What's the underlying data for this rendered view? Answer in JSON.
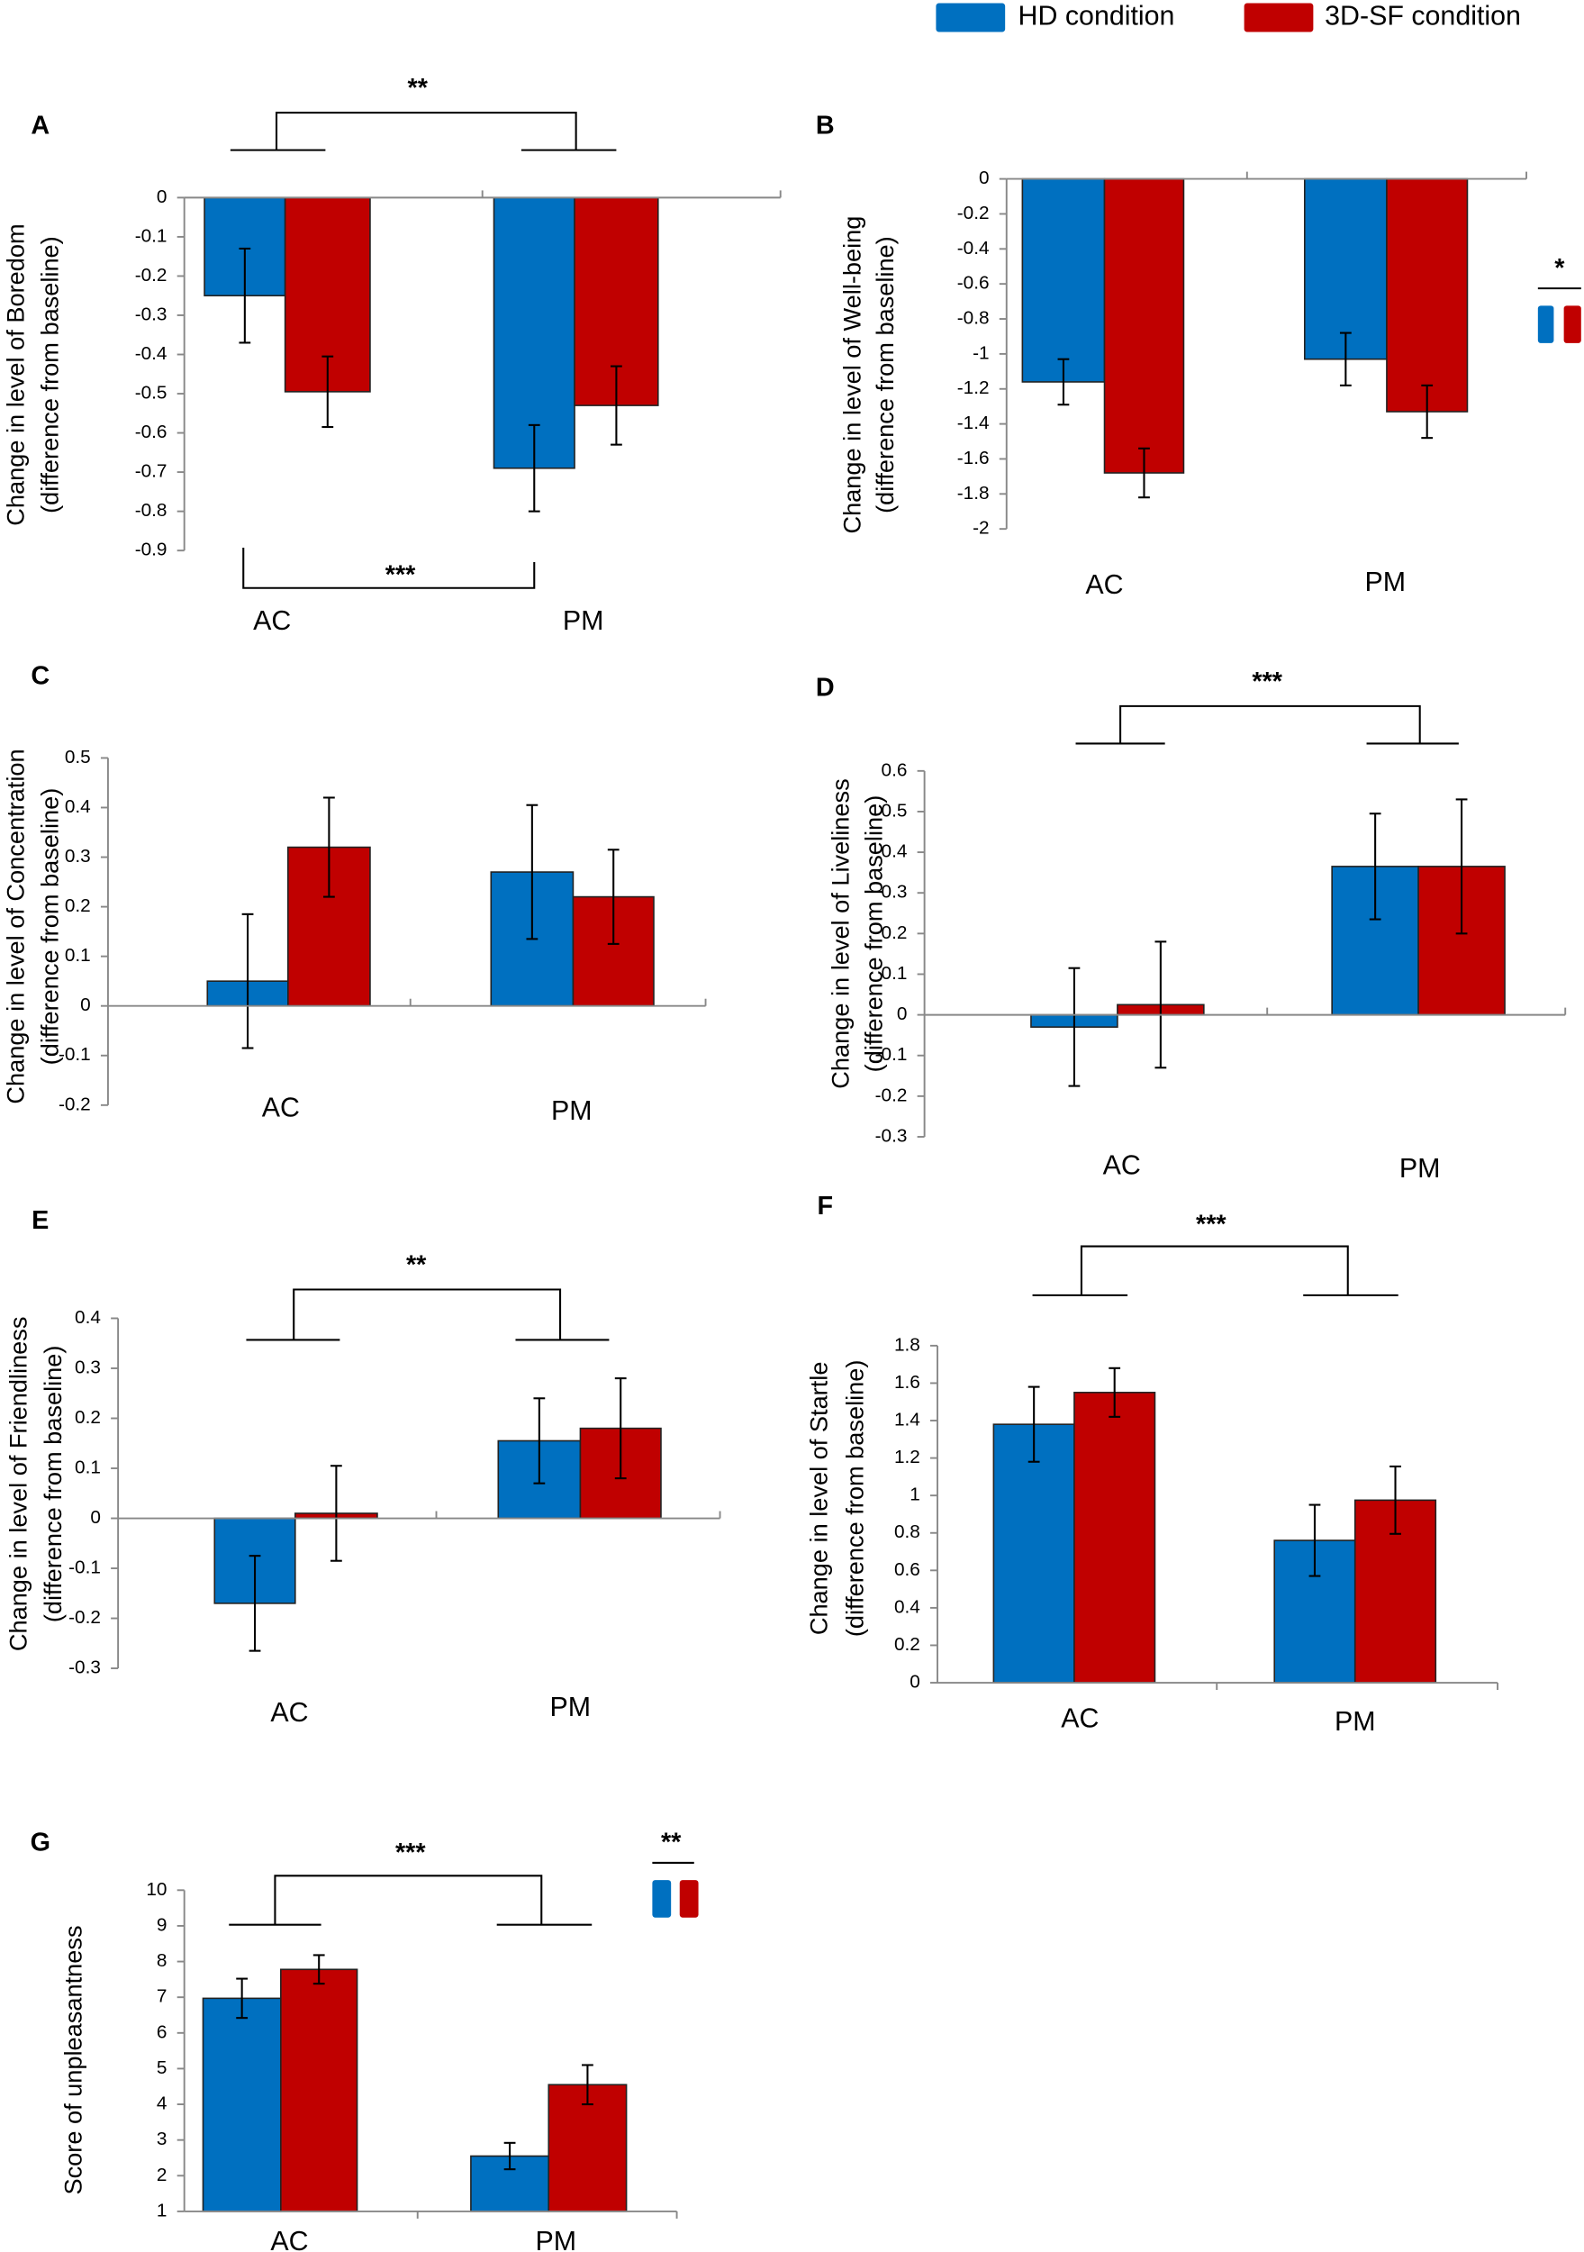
{
  "chart_data": [
    {
      "panel": "A",
      "type": "bar",
      "ylabel": [
        "Change in level of  Boredom",
        "(difference from baseline)"
      ],
      "ylim": [
        0,
        -0.9
      ],
      "ticks": [
        0,
        -0.1,
        -0.2,
        -0.3,
        -0.4,
        -0.5,
        -0.6,
        -0.7,
        -0.8,
        -0.9
      ],
      "categories": [
        "AC",
        "PM"
      ],
      "series": [
        {
          "name": "HD condition",
          "values": [
            -0.25,
            -0.69
          ],
          "errors": [
            0.12,
            0.11
          ]
        },
        {
          "name": "3D-SF condition",
          "values": [
            -0.495,
            -0.53
          ],
          "errors": [
            0.09,
            0.1
          ]
        }
      ],
      "annotations": [
        "**",
        "***"
      ]
    },
    {
      "panel": "B",
      "type": "bar",
      "ylabel": [
        "Change in level of Well-being",
        "(difference from baseline)"
      ],
      "ylim": [
        0,
        -2
      ],
      "ticks": [
        0,
        -0.2,
        -0.4,
        -0.6,
        -0.8,
        -1,
        -1.2,
        -1.4,
        -1.6,
        -1.8,
        -2
      ],
      "categories": [
        "AC",
        "PM"
      ],
      "series": [
        {
          "name": "HD condition",
          "values": [
            -1.16,
            -1.03
          ],
          "errors": [
            0.13,
            0.15
          ]
        },
        {
          "name": "3D-SF condition",
          "values": [
            -1.68,
            -1.33
          ],
          "errors": [
            0.14,
            0.15
          ]
        }
      ],
      "annotations": [
        "*"
      ]
    },
    {
      "panel": "C",
      "type": "bar",
      "ylabel": [
        "Change in level of Concentration",
        "(difference from baseline)"
      ],
      "ylim": [
        0.5,
        -0.2
      ],
      "ticks": [
        0.5,
        0.4,
        0.3,
        0.2,
        0.1,
        0,
        -0.1,
        -0.2
      ],
      "categories": [
        "AC",
        "PM"
      ],
      "series": [
        {
          "name": "HD condition",
          "values": [
            0.05,
            0.27
          ],
          "errors": [
            0.135,
            0.135
          ]
        },
        {
          "name": "3D-SF condition",
          "values": [
            0.32,
            0.22
          ],
          "errors": [
            0.1,
            0.095
          ]
        }
      ],
      "annotations": []
    },
    {
      "panel": "D",
      "type": "bar",
      "ylabel": [
        "Change in level of Liveliness",
        "(difference from baseline)"
      ],
      "ylim": [
        0.6,
        -0.3
      ],
      "ticks": [
        0.6,
        0.5,
        0.4,
        0.3,
        0.2,
        0.1,
        0,
        -0.1,
        -0.2,
        -0.3
      ],
      "categories": [
        "AC",
        "PM"
      ],
      "series": [
        {
          "name": "HD condition",
          "values": [
            -0.03,
            0.365
          ],
          "errors": [
            0.145,
            0.13
          ]
        },
        {
          "name": "3D-SF condition",
          "values": [
            0.025,
            0.365
          ],
          "errors": [
            0.155,
            0.165
          ]
        }
      ],
      "annotations": [
        "***"
      ]
    },
    {
      "panel": "E",
      "type": "bar",
      "ylabel": [
        "Change in level of Friendliness",
        "(difference from baseline)"
      ],
      "ylim": [
        0.4,
        -0.3
      ],
      "ticks": [
        0.4,
        0.3,
        0.2,
        0.1,
        0,
        -0.1,
        -0.2,
        -0.3
      ],
      "categories": [
        "AC",
        "PM"
      ],
      "series": [
        {
          "name": "HD condition",
          "values": [
            -0.17,
            0.155
          ],
          "errors": [
            0.095,
            0.085
          ]
        },
        {
          "name": "3D-SF condition",
          "values": [
            0.01,
            0.18
          ],
          "errors": [
            0.095,
            0.1
          ]
        }
      ],
      "annotations": [
        "**"
      ]
    },
    {
      "panel": "F",
      "type": "bar",
      "ylabel": [
        "Change in level of Startle",
        "(difference from baseline)"
      ],
      "ylim": [
        1.8,
        0
      ],
      "ticks": [
        1.8,
        1.6,
        1.4,
        1.2,
        1,
        0.8,
        0.6,
        0.4,
        0.2,
        0
      ],
      "categories": [
        "AC",
        "PM"
      ],
      "series": [
        {
          "name": "HD condition",
          "values": [
            1.38,
            0.76
          ],
          "errors": [
            0.2,
            0.19
          ]
        },
        {
          "name": "3D-SF condition",
          "values": [
            1.55,
            0.975
          ],
          "errors": [
            0.13,
            0.18
          ]
        }
      ],
      "annotations": [
        "***"
      ]
    },
    {
      "panel": "G",
      "type": "bar",
      "ylabel": [
        "Score of unpleasantness"
      ],
      "ylim": [
        10,
        1
      ],
      "ticks": [
        10,
        9,
        8,
        7,
        6,
        5,
        4,
        3,
        2,
        1
      ],
      "categories": [
        "AC",
        "PM"
      ],
      "series": [
        {
          "name": "HD condition",
          "values": [
            6.97,
            2.55
          ],
          "errors": [
            0.55,
            0.37
          ]
        },
        {
          "name": "3D-SF condition",
          "values": [
            7.78,
            4.55
          ],
          "errors": [
            0.4,
            0.55
          ]
        }
      ],
      "annotations": [
        "***",
        "**"
      ]
    }
  ],
  "legend": {
    "hd": "HD condition",
    "sf": "3D-SF condition"
  },
  "colors": {
    "hd": "#0070C0",
    "sf": "#C00000"
  }
}
